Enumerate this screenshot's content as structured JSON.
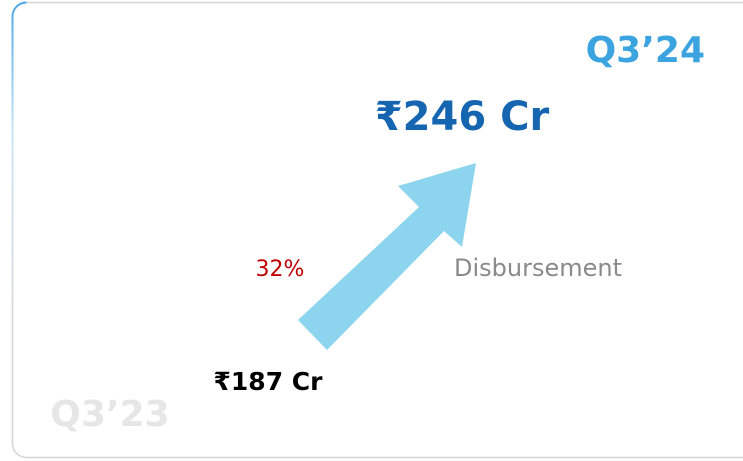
{
  "current": {
    "period": "Q3’24",
    "amount": "₹246 Cr"
  },
  "previous": {
    "period": "Q3’23",
    "amount": "₹187 Cr"
  },
  "growth": "32%",
  "metric": "Disbursement"
}
